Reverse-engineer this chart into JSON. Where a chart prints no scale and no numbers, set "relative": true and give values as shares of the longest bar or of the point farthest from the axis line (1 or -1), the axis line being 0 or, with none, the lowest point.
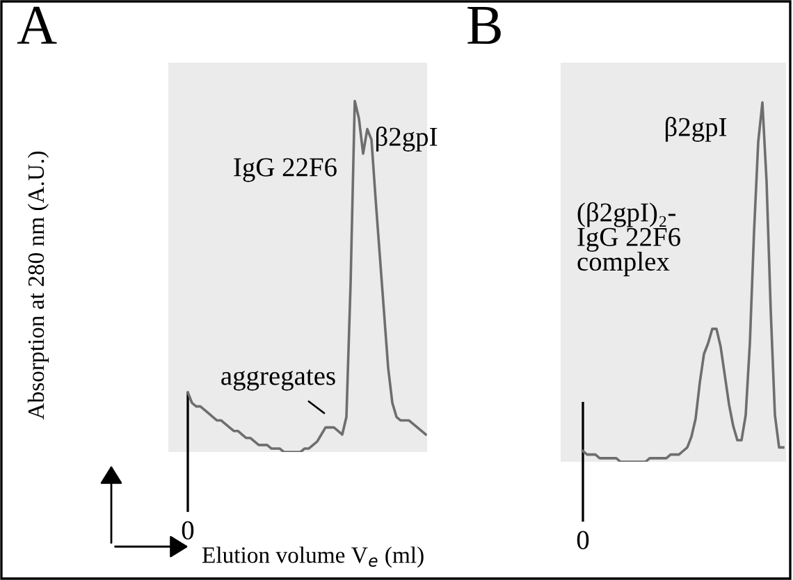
{
  "chart_data": [
    {
      "type": "line",
      "title": "A",
      "ylabel": "Absorption at 280 nm (A.U.)",
      "xlabel": "Elution volume V$_{e}$ (ml)",
      "relative": true,
      "categories": [
        null,
        null,
        null,
        null,
        null,
        null,
        null,
        null,
        null,
        null,
        null,
        null,
        null,
        null,
        null,
        null,
        null,
        null,
        null,
        null,
        null,
        null,
        null,
        null,
        null,
        null,
        null,
        null,
        null,
        null,
        null,
        null,
        null,
        null,
        null,
        null,
        null,
        null,
        null,
        null,
        null,
        null,
        null,
        null,
        null,
        null,
        null,
        null,
        null,
        null,
        null,
        null,
        null,
        null,
        null,
        null,
        null,
        null
      ],
      "series": [
        {
          "color": "#6e6e6e",
          "values": [
            0.17,
            0.14,
            0.13,
            0.13,
            0.12,
            0.11,
            0.1,
            0.09,
            0.09,
            0.08,
            0.07,
            0.06,
            0.06,
            0.05,
            0.04,
            0.04,
            0.03,
            0.02,
            0.02,
            0.02,
            0.01,
            0.01,
            0.01,
            0.0,
            0.0,
            0,
            0.0,
            0.0,
            0.01,
            0.01,
            0.02,
            0.03,
            0.05,
            0.07,
            0.07,
            0.07,
            0.06,
            0.05,
            0.1,
            0.48,
            1.0,
            0.95,
            0.85,
            0.92,
            0.89,
            0.72,
            0.56,
            0.4,
            0.24,
            0.14,
            0.1,
            0.09,
            0.09,
            0.09,
            0.08,
            0.07,
            0.06,
            0.05
          ]
        }
      ],
      "annotations": [
        "IgG 22F6",
        "β2gpI",
        "aggregates",
        "0"
      ]
    },
    {
      "type": "line",
      "title": "B",
      "relative": true,
      "categories": [
        null,
        null,
        null,
        null,
        null,
        null,
        null,
        null,
        null,
        null,
        null,
        null,
        null,
        null,
        null,
        null,
        null,
        null,
        null,
        null,
        null,
        null,
        null,
        null,
        null,
        null,
        null,
        null,
        null,
        null,
        null,
        null,
        null,
        null,
        null,
        null,
        null,
        null,
        null,
        null,
        null,
        null,
        null,
        null,
        null,
        null,
        null,
        null,
        null
      ],
      "series": [
        {
          "color": "#6e6e6e",
          "values": [
            0.03,
            0.02,
            0.02,
            0.02,
            0.01,
            0.01,
            0.01,
            0.01,
            0.01,
            0.0,
            0.0,
            0.0,
            0,
            0.0,
            0.0,
            0.0,
            0.01,
            0.01,
            0.01,
            0.01,
            0.01,
            0.02,
            0.02,
            0.02,
            0.03,
            0.04,
            0.07,
            0.12,
            0.22,
            0.3,
            0.33,
            0.37,
            0.37,
            0.32,
            0.24,
            0.16,
            0.1,
            0.06,
            0.06,
            0.13,
            0.33,
            0.64,
            0.89,
            1.0,
            0.78,
            0.42,
            0.13,
            0.04,
            0.04
          ]
        }
      ],
      "annotations": [
        "β2gpI",
        "(β2gpI)₂-\nIgG 22F6\ncomplex",
        "0"
      ]
    }
  ]
}
